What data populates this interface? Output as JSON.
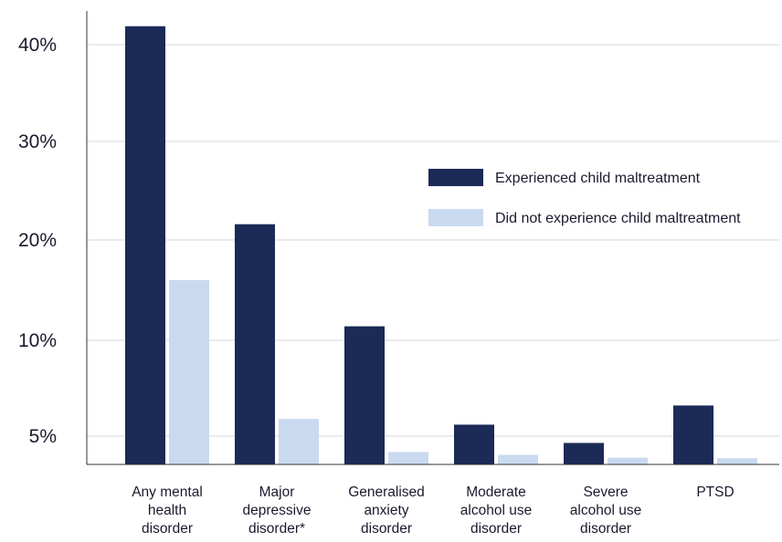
{
  "chart_data": {
    "type": "bar",
    "categories": [
      [
        "Any mental",
        "health",
        "disorder"
      ],
      [
        "Major",
        "depressive",
        "disorder*"
      ],
      [
        "Generalised",
        "anxiety",
        "disorder"
      ],
      [
        "Moderate",
        "alcohol use",
        "disorder"
      ],
      [
        "Severe",
        "alcohol use",
        "disorder"
      ],
      [
        "PTSD"
      ]
    ],
    "series": [
      {
        "name": "Experienced child maltreatment",
        "color": "#1b2a56",
        "values": [
          41.9,
          21.6,
          11.4,
          5.6,
          3.8,
          6.6
        ]
      },
      {
        "name": "Did not experience child maltreatment",
        "color": "#c9daf0",
        "values": [
          16.0,
          5.9,
          2.2,
          1.7,
          1.2,
          1.1
        ]
      }
    ],
    "yticks": [
      {
        "value": 5,
        "label": "5%"
      },
      {
        "value": 10,
        "label": "10%"
      },
      {
        "value": 20,
        "label": "20%"
      },
      {
        "value": 30,
        "label": "30%"
      },
      {
        "value": 40,
        "label": "40%"
      }
    ],
    "ylim": [
      0,
      43
    ],
    "grid": true,
    "legend_position": "right",
    "title": "",
    "xlabel": "",
    "ylabel": ""
  }
}
